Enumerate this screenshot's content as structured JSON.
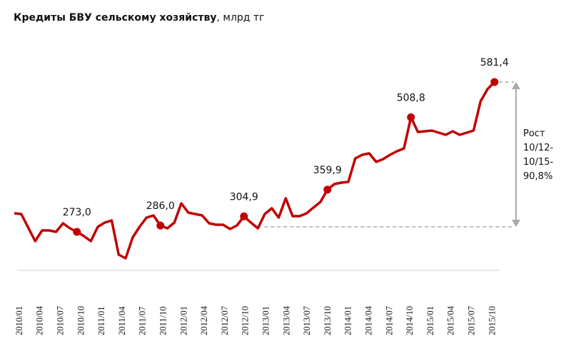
{
  "chart_data": {
    "type": "line",
    "title": "Кредиты БВУ сельскому хозяйству",
    "title_unit": ", млрд тг",
    "xlabel": "",
    "ylabel": "",
    "grid": false,
    "legend": "none",
    "series_color": "#c00000",
    "tick_labels": [
      "2010/01",
      "2010/04",
      "2010/07",
      "2010/10",
      "2011/01",
      "2011/04",
      "2011/07",
      "2011/10",
      "2012/01",
      "2012/04",
      "2012/07",
      "2012/10",
      "2013/01",
      "2013/04",
      "2013/07",
      "2013/10",
      "2014/01",
      "2014/04",
      "2014/07",
      "2014/10",
      "2015/01",
      "2015/04",
      "2015/07",
      "2015/10"
    ],
    "x_start": "2010/01",
    "x_end": "2015/10",
    "x_step": "month",
    "values": [
      311.2,
      309.7,
      281.8,
      253.9,
      275.9,
      275.9,
      273.0,
      290.6,
      280.3,
      273.0,
      264.3,
      253.9,
      283.3,
      292.1,
      296.5,
      226.0,
      218.6,
      261.2,
      283.3,
      302.4,
      306.8,
      286.0,
      280.3,
      292.1,
      331.7,
      312.6,
      309.7,
      306.8,
      290.6,
      287.7,
      287.7,
      278.9,
      286.2,
      304.9,
      292.1,
      280.3,
      309.7,
      321.4,
      302.4,
      342.0,
      305.3,
      305.3,
      311.2,
      323.0,
      334.7,
      359.9,
      371.4,
      374.3,
      375.8,
      424.3,
      431.6,
      434.5,
      417.0,
      422.8,
      431.6,
      439.0,
      444.8,
      508.8,
      478.6,
      480.1,
      481.5,
      477.1,
      472.7,
      480.1,
      472.7,
      477.1,
      481.5,
      541.8,
      566.7,
      581.4
    ],
    "highlighted": [
      {
        "index": 9,
        "label": "273,0"
      },
      {
        "index": 21,
        "label": "286,0"
      },
      {
        "index": 33,
        "label": "304,9"
      },
      {
        "index": 45,
        "label": "359,9"
      },
      {
        "index": 57,
        "label": "508,8"
      },
      {
        "index": 69,
        "label": "581,4"
      }
    ],
    "annotation": {
      "lines": [
        "Рост",
        "10/12-",
        "10/15-",
        "90,8%"
      ],
      "from_index": 35,
      "to_index": 69,
      "arrow_color": "#aaaaaa"
    }
  }
}
